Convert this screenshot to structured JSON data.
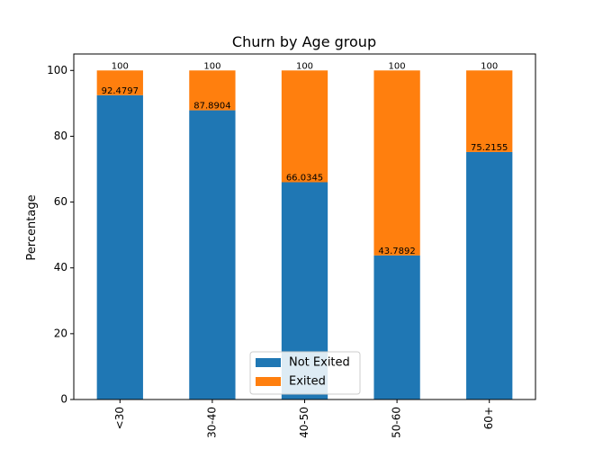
{
  "chart_data": {
    "type": "bar",
    "stacked": true,
    "title": "Churn by Age group",
    "xlabel": "",
    "ylabel": "Percentage",
    "categories": [
      "<30",
      "30-40",
      "40-50",
      "50-60",
      "60+"
    ],
    "series": [
      {
        "name": "Not Exited",
        "color": "#1f77b4",
        "values": [
          92.4797,
          87.8904,
          66.0345,
          43.7892,
          75.2155
        ]
      },
      {
        "name": "Exited",
        "color": "#ff7f0e",
        "values": [
          7.5203,
          12.1096,
          33.9655,
          56.2108,
          24.7845
        ]
      }
    ],
    "segment_labels": {
      "not_exited": [
        "92.4797",
        "87.8904",
        "66.0345",
        "43.7892",
        "75.2155"
      ],
      "total": [
        "100",
        "100",
        "100",
        "100",
        "100"
      ]
    },
    "ylim": [
      0,
      105
    ],
    "yticks": [
      0,
      20,
      40,
      60,
      80,
      100
    ],
    "grid": false,
    "legend_position": "bottom-center"
  }
}
